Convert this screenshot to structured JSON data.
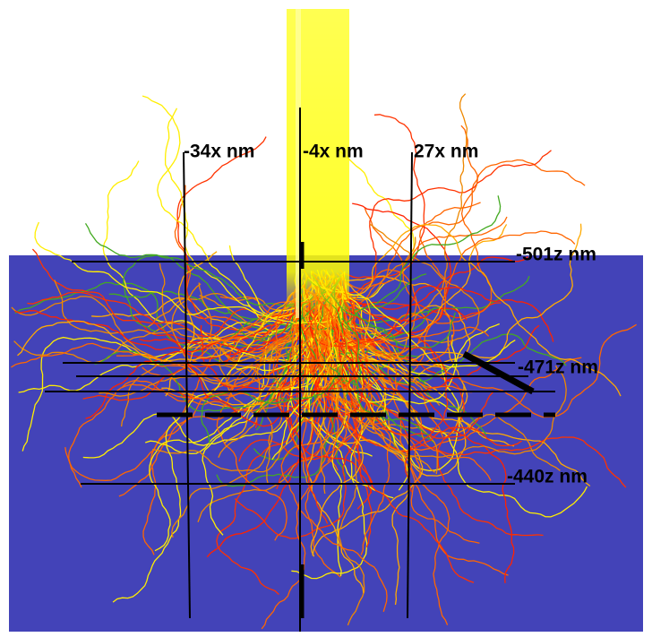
{
  "labels": {
    "x": [
      "-34x nm",
      "-4x nm",
      "27x nm"
    ],
    "z": [
      "-501z nm",
      "-471z nm",
      "-440z nm"
    ]
  }
}
